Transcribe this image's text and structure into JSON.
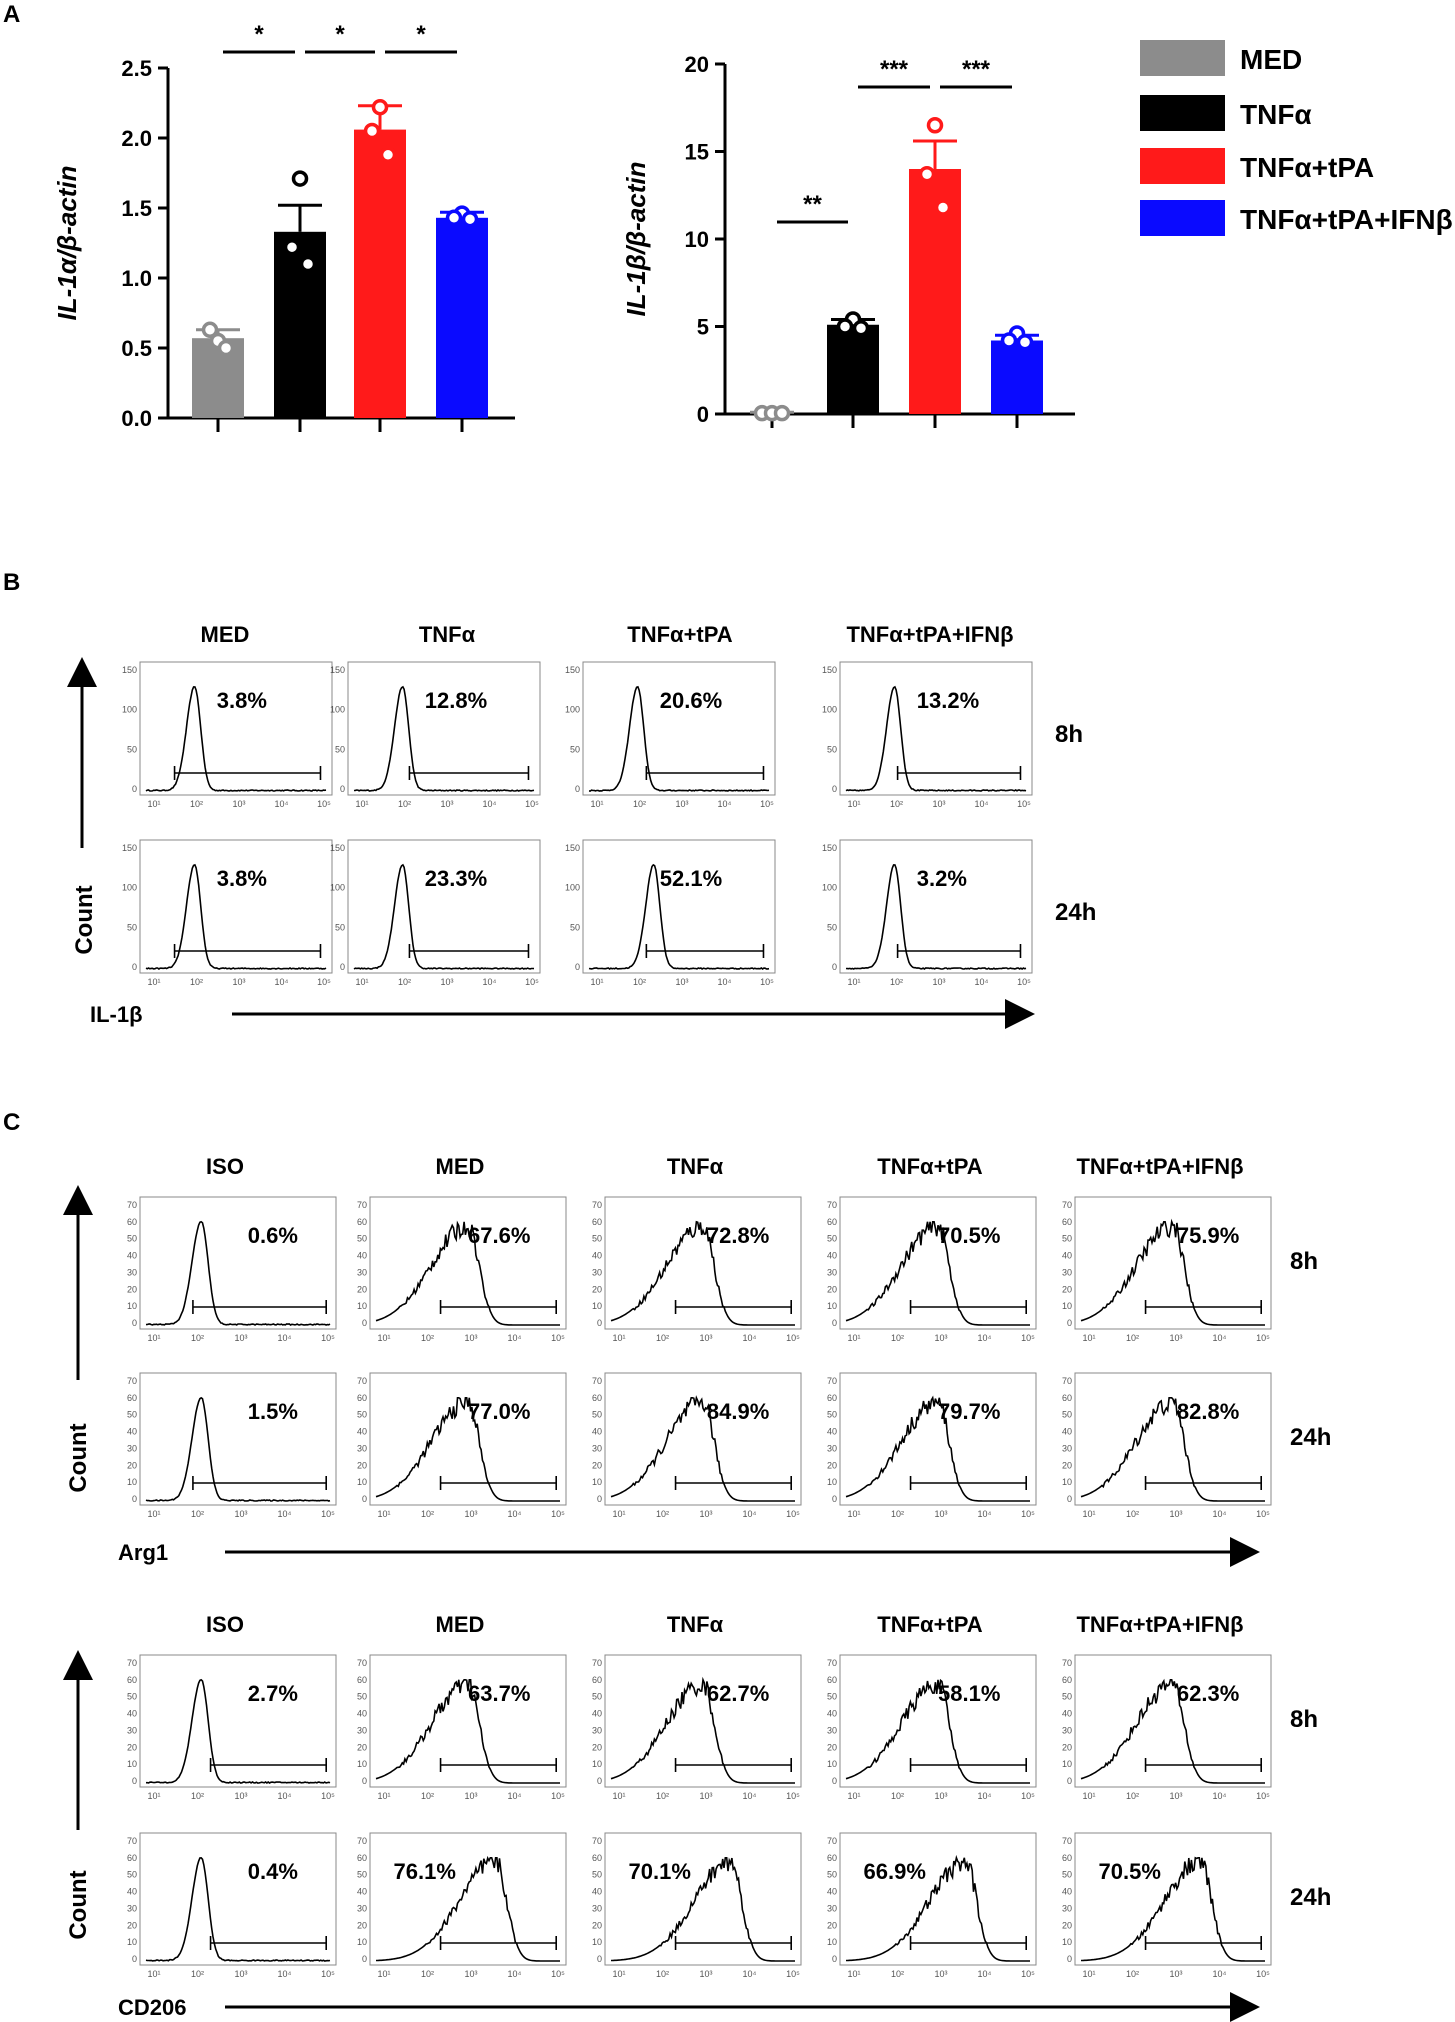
{
  "panels": {
    "a": "A",
    "b": "B",
    "c": "C"
  },
  "colors": {
    "MED": "#8c8c8c",
    "TNFa": "#000000",
    "TNFa_tPA": "#ff1a1a",
    "TNFa_tPA_IFNb": "#0a0aff"
  },
  "legend": [
    "MED",
    "TNFα",
    "TNFα+tPA",
    "TNFα+tPA+IFNβ"
  ],
  "chart_data": [
    {
      "type": "bar",
      "ylabel": "IL-1α/β-actin",
      "ylim": [
        0,
        2.5
      ],
      "yticks": [
        "0.0",
        "0.5",
        "1.0",
        "1.5",
        "2.0",
        "2.5"
      ],
      "categories": [
        "MED",
        "TNFα",
        "TNFα+tPA",
        "TNFα+tPA+IFNβ"
      ],
      "values": [
        0.57,
        1.33,
        2.06,
        1.43
      ],
      "errors": [
        0.06,
        0.19,
        0.17,
        0.04
      ],
      "points": [
        [
          0.55,
          0.63,
          0.5
        ],
        [
          1.71,
          1.22,
          1.1
        ],
        [
          2.22,
          2.05,
          1.88
        ],
        [
          1.46,
          1.43,
          1.42
        ]
      ],
      "significance": [
        {
          "from": 1,
          "to": 2,
          "label": "*"
        },
        {
          "from": 2,
          "to": 3,
          "label": "*"
        },
        {
          "from": 3,
          "to": 4,
          "label": "*"
        }
      ]
    },
    {
      "type": "bar",
      "ylabel": "IL-1β/β-actin",
      "ylim": [
        0,
        20
      ],
      "yticks": [
        "0",
        "5",
        "10",
        "15",
        "20"
      ],
      "categories": [
        "MED",
        "TNFα",
        "TNFα+tPA",
        "TNFα+tPA+IFNβ"
      ],
      "values": [
        0.05,
        5.1,
        14.0,
        4.2
      ],
      "errors": [
        0.05,
        0.3,
        1.6,
        0.3
      ],
      "points": [
        [
          0.05,
          0.05,
          0.05
        ],
        [
          5.4,
          5.0,
          4.9
        ],
        [
          16.5,
          13.7,
          11.8
        ],
        [
          4.6,
          4.2,
          4.1
        ]
      ],
      "significance": [
        {
          "from": 1,
          "to": 2,
          "label": "**"
        },
        {
          "from": 2,
          "to": 3,
          "label": "***"
        },
        {
          "from": 3,
          "to": 4,
          "label": "***"
        }
      ]
    }
  ],
  "panel_b": {
    "conditions": [
      "MED",
      "TNFα",
      "TNFα+tPA",
      "TNFα+tPA+IFNβ"
    ],
    "times": [
      "8h",
      "24h"
    ],
    "percents": [
      [
        "3.8%",
        "12.8%",
        "20.6%",
        "13.2%"
      ],
      [
        "3.8%",
        "23.3%",
        "52.1%",
        "3.2%"
      ]
    ],
    "ylabel": "Count",
    "xlabel": "IL-1β",
    "yticks": [
      "150",
      "100",
      "50",
      "0"
    ]
  },
  "panel_c": {
    "conditions": [
      "ISO",
      "MED",
      "TNFα",
      "TNFα+tPA",
      "TNFα+tPA+IFNβ"
    ],
    "times": [
      "8h",
      "24h"
    ],
    "arg1": {
      "xlabel": "Arg1",
      "percents": [
        [
          "0.6%",
          "67.6%",
          "72.8%",
          "70.5%",
          "75.9%"
        ],
        [
          "1.5%",
          "77.0%",
          "84.9%",
          "79.7%",
          "82.8%"
        ]
      ]
    },
    "cd206": {
      "xlabel": "CD206",
      "percents": [
        [
          "2.7%",
          "63.7%",
          "62.7%",
          "58.1%",
          "62.3%"
        ],
        [
          "0.4%",
          "76.1%",
          "70.1%",
          "66.9%",
          "70.5%"
        ]
      ]
    },
    "ylabel": "Count",
    "yticks": [
      "70",
      "60",
      "50",
      "40",
      "30",
      "20",
      "10",
      "0"
    ]
  },
  "xaxis_ticks": [
    "10¹",
    "10²",
    "10³",
    "10⁴",
    "10⁵"
  ]
}
